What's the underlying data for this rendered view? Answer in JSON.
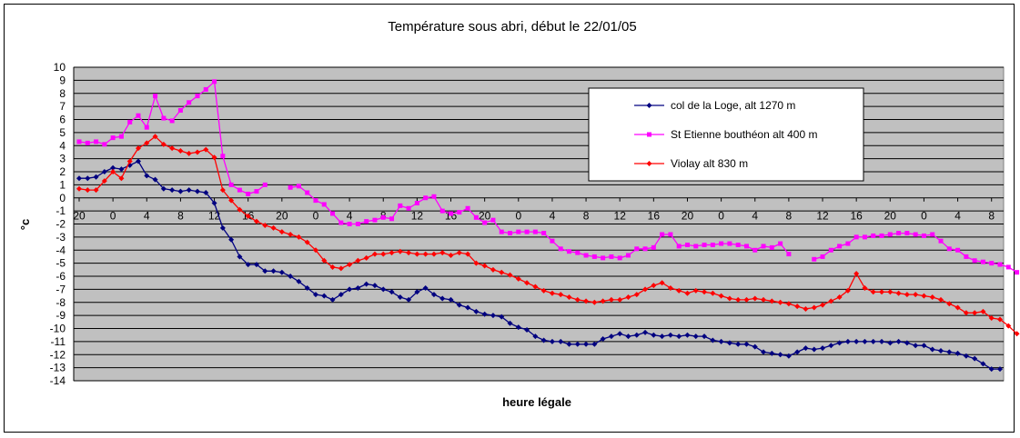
{
  "chart_data": {
    "type": "line",
    "title": "Température sous abri, début le 22/01/05",
    "xlabel": "heure légale",
    "ylabel": "°c",
    "ylim": [
      -14,
      10
    ],
    "yticks": [
      "10",
      "9",
      "8",
      "7",
      "6",
      "5",
      "4",
      "3",
      "2",
      "1",
      "0",
      "-1",
      "-2",
      "-3",
      "-4",
      "-5",
      "-6",
      "-7",
      "-8",
      "-9",
      "-10",
      "-11",
      "-12",
      "-13",
      "-14"
    ],
    "xticks": [
      "20",
      "0",
      "4",
      "8",
      "12",
      "16",
      "20",
      "0",
      "4",
      "8",
      "12",
      "16",
      "20",
      "0",
      "4",
      "8",
      "12",
      "16",
      "20",
      "0",
      "4",
      "8",
      "12",
      "16",
      "20",
      "0",
      "4",
      "8"
    ],
    "x_range": [
      0,
      109
    ],
    "grid": "horizontal",
    "legend_position": "top-right",
    "colors": {
      "plot_bg": "#c0c0c0",
      "grid": "#000000"
    },
    "series": [
      {
        "name": "col de la Loge, alt 1270 m",
        "color": "#000080",
        "marker": "diamond",
        "values": [
          1.5,
          1.5,
          1.6,
          2.0,
          2.3,
          2.2,
          2.5,
          2.8,
          1.7,
          1.4,
          0.7,
          0.6,
          0.5,
          0.6,
          0.5,
          0.4,
          -0.4,
          -2.3,
          -3.2,
          -4.5,
          -5.1,
          -5.1,
          -5.6,
          -5.6,
          -5.7,
          -6.0,
          -6.4,
          -6.9,
          -7.4,
          -7.5,
          -7.8,
          -7.4,
          -7.0,
          -6.9,
          -6.6,
          -6.7,
          -7.0,
          -7.2,
          -7.6,
          -7.8,
          -7.2,
          -6.9,
          -7.4,
          -7.7,
          -7.8,
          -8.2,
          -8.4,
          -8.7,
          -8.9,
          -9.0,
          -9.1,
          -9.6,
          -9.9,
          -10.1,
          -10.6,
          -10.9,
          -11.0,
          -11.0,
          -11.2,
          -11.2,
          -11.2,
          -11.2,
          -10.8,
          -10.6,
          -10.4,
          -10.6,
          -10.5,
          -10.3,
          -10.5,
          -10.6,
          -10.5,
          -10.6,
          -10.5,
          -10.6,
          -10.6,
          -10.9,
          -11.0,
          -11.1,
          -11.2,
          -11.2,
          -11.4,
          -11.8,
          -11.9,
          -12.0,
          -12.1,
          -11.8,
          -11.5,
          -11.6,
          -11.5,
          -11.3,
          -11.1,
          -11.0,
          -11.0,
          -11.0,
          -11.0,
          -11.0,
          -11.1,
          -11.0,
          -11.1,
          -11.3,
          -11.3,
          -11.6,
          -11.7,
          -11.8,
          -11.9,
          -12.1,
          -12.3,
          -12.7,
          -13.1,
          -13.1
        ]
      },
      {
        "name": "St Etienne bouthéon alt 400 m",
        "color": "#ff00ff",
        "marker": "square",
        "values": [
          4.3,
          4.2,
          4.3,
          4.1,
          4.6,
          4.7,
          5.8,
          6.3,
          5.4,
          7.8,
          6.1,
          5.9,
          6.7,
          7.3,
          7.8,
          8.3,
          8.9,
          3.2,
          1.0,
          0.6,
          0.3,
          0.5,
          1.0,
          null,
          null,
          0.8,
          0.9,
          0.4,
          -0.2,
          -0.5,
          -1.2,
          -1.9,
          -2.0,
          -2.0,
          -1.8,
          -1.7,
          -1.5,
          -1.6,
          -0.6,
          -0.8,
          -0.4,
          0.0,
          0.1,
          -1.0,
          -1.2,
          -1.1,
          -0.8,
          -1.5,
          -1.9,
          -1.7,
          -2.6,
          -2.7,
          -2.6,
          -2.6,
          -2.6,
          -2.7,
          -3.3,
          -3.9,
          -4.1,
          -4.2,
          -4.4,
          -4.5,
          -4.6,
          -4.5,
          -4.6,
          -4.4,
          -3.9,
          -3.9,
          -3.8,
          -2.8,
          -2.8,
          -3.7,
          -3.6,
          -3.7,
          -3.6,
          -3.6,
          -3.5,
          -3.5,
          -3.6,
          -3.7,
          -4.0,
          -3.7,
          -3.8,
          -3.5,
          -4.3,
          null,
          null,
          -4.7,
          -4.5,
          -4.0,
          -3.7,
          -3.5,
          -3.0,
          -3.0,
          -2.9,
          -2.9,
          -2.8,
          -2.7,
          -2.7,
          -2.8,
          -2.9,
          -2.8,
          -3.3,
          -3.9,
          -4.0,
          -4.5,
          -4.8,
          -4.9,
          -5.0,
          -5.1,
          -5.3,
          -5.7
        ]
      },
      {
        "name": "Violay alt 830 m",
        "color": "#ff0000",
        "marker": "diamond",
        "values": [
          0.7,
          0.6,
          0.6,
          1.3,
          2.0,
          1.5,
          2.8,
          3.8,
          4.2,
          4.7,
          4.1,
          3.8,
          3.6,
          3.4,
          3.5,
          3.7,
          3.1,
          0.6,
          -0.2,
          -0.9,
          -1.4,
          -1.8,
          -2.1,
          -2.3,
          -2.6,
          -2.8,
          -3.0,
          -3.4,
          -4.0,
          -4.8,
          -5.3,
          -5.4,
          -5.1,
          -4.8,
          -4.6,
          -4.3,
          -4.3,
          -4.2,
          -4.1,
          -4.2,
          -4.3,
          -4.3,
          -4.3,
          -4.2,
          -4.4,
          -4.2,
          -4.3,
          -5.0,
          -5.2,
          -5.5,
          -5.7,
          -5.9,
          -6.2,
          -6.5,
          -6.8,
          -7.1,
          -7.3,
          -7.4,
          -7.6,
          -7.8,
          -7.9,
          -8.0,
          -7.9,
          -7.8,
          -7.8,
          -7.6,
          -7.4,
          -7.0,
          -6.7,
          -6.5,
          -6.9,
          -7.1,
          -7.3,
          -7.1,
          -7.2,
          -7.3,
          -7.5,
          -7.7,
          -7.8,
          -7.8,
          -7.7,
          -7.8,
          -7.9,
          -8.0,
          -8.1,
          -8.3,
          -8.5,
          -8.4,
          -8.2,
          -7.9,
          -7.6,
          -7.1,
          -5.8,
          -6.9,
          -7.2,
          -7.2,
          -7.2,
          -7.3,
          -7.4,
          -7.4,
          -7.5,
          -7.6,
          -7.8,
          -8.1,
          -8.4,
          -8.8,
          -8.8,
          -8.7,
          -9.2,
          -9.3,
          -9.8,
          -10.4
        ]
      }
    ]
  }
}
